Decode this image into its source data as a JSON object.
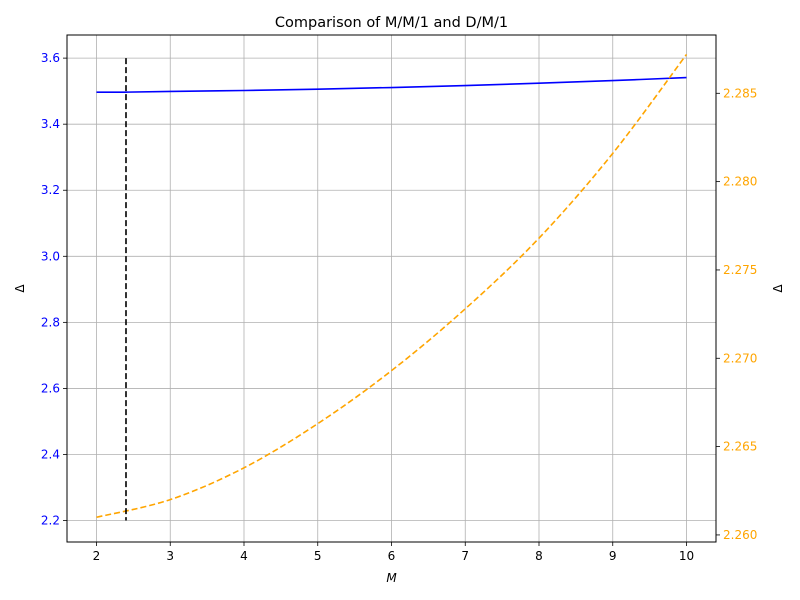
{
  "chart_data": {
    "type": "line",
    "title": "Comparison of M/M/1 and D/M/1",
    "xlabel": "M",
    "ylabel_left": "Δ",
    "ylabel_right": "Δ",
    "xlim": [
      1.6,
      10.4
    ],
    "ylim_left": [
      2.135,
      3.67
    ],
    "ylim_right": [
      2.2596,
      2.2883
    ],
    "x_ticks": [
      2,
      3,
      4,
      5,
      6,
      7,
      8,
      9,
      10
    ],
    "y_ticks_left": [
      2.2,
      2.4,
      2.6,
      2.8,
      3.0,
      3.2,
      3.4,
      3.6
    ],
    "y_ticks_left_labels": [
      "2.2",
      "2.4",
      "2.6",
      "2.8",
      "3.0",
      "3.2",
      "3.4",
      "3.6"
    ],
    "y_ticks_right": [
      2.26,
      2.265,
      2.27,
      2.275,
      2.28,
      2.285
    ],
    "y_ticks_right_labels": [
      "2.260",
      "2.265",
      "2.270",
      "2.275",
      "2.280",
      "2.285"
    ],
    "grid": true,
    "series": [
      {
        "axis": "left",
        "style": "solid",
        "color": "#0000ff",
        "x": [
          2,
          2.4,
          3,
          4,
          5,
          6,
          7,
          8,
          9,
          10
        ],
        "values": [
          3.497,
          3.497,
          3.499,
          3.502,
          3.506,
          3.511,
          3.517,
          3.524,
          3.532,
          3.541
        ]
      },
      {
        "axis": "right",
        "style": "dashed",
        "color": "#ffa500",
        "x": [
          2,
          3,
          4,
          5,
          6,
          7,
          8,
          9,
          10
        ],
        "values": [
          2.261,
          2.262,
          2.2638,
          2.2663,
          2.2693,
          2.2728,
          2.2768,
          2.2816,
          2.2872
        ]
      }
    ],
    "vline": {
      "x": 2.4,
      "y_range": [
        2.2,
        3.6
      ],
      "color": "#000000",
      "style": "dashed"
    },
    "colors": {
      "left_axis": "#0000ff",
      "right_axis": "#ffa500",
      "grid": "#b0b0b0",
      "frame": "#000000"
    }
  }
}
